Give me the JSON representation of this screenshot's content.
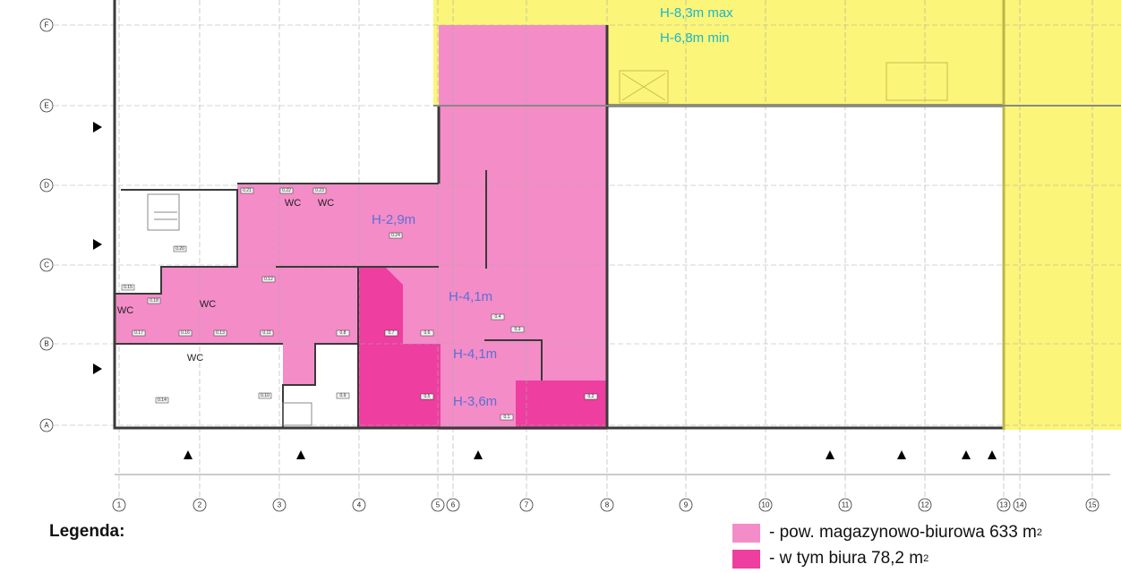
{
  "legend": {
    "title": "Legenda:",
    "items": [
      {
        "label": "- pow. magazynowo-biurowa 633 m",
        "sup": "2",
        "color": "#f48cc8"
      },
      {
        "label": "- w tym biura 78,2 m",
        "sup": "2",
        "color": "#ee3ea0"
      }
    ]
  },
  "heights": {
    "hall_max": "H-8,3m max",
    "hall_min": "H-6,8m min",
    "office": "H-2,9m",
    "warehouse_1": "H-4,1m",
    "warehouse_2": "H-4,1m",
    "warehouse_3": "H-3,6m"
  },
  "wc_labels": [
    "WC",
    "WC",
    "WC",
    "WC",
    "WC"
  ],
  "rows": [
    "F",
    "E",
    "D",
    "C",
    "B",
    "A"
  ],
  "columns": [
    "1",
    "2",
    "3",
    "4",
    "5",
    "6",
    "7",
    "8",
    "9",
    "10",
    "11",
    "12",
    "13",
    "14",
    "15"
  ],
  "rooms": [
    "0.21",
    "0.22",
    "0.23",
    "0.24",
    "0.20",
    "0.12",
    "0.15",
    "0.18",
    "0.17",
    "0.16",
    "0.13",
    "0.11",
    "0.8",
    "0.7",
    "0.6",
    "0.4",
    "0.3",
    "0.5",
    "0.1",
    "0.2",
    "0.14",
    "0.10",
    "0.9"
  ],
  "colors": {
    "hall": "#fbf57a",
    "warehouse": "#f48cc8",
    "office": "#ee3ea0",
    "wall": "#3a3a3a"
  }
}
